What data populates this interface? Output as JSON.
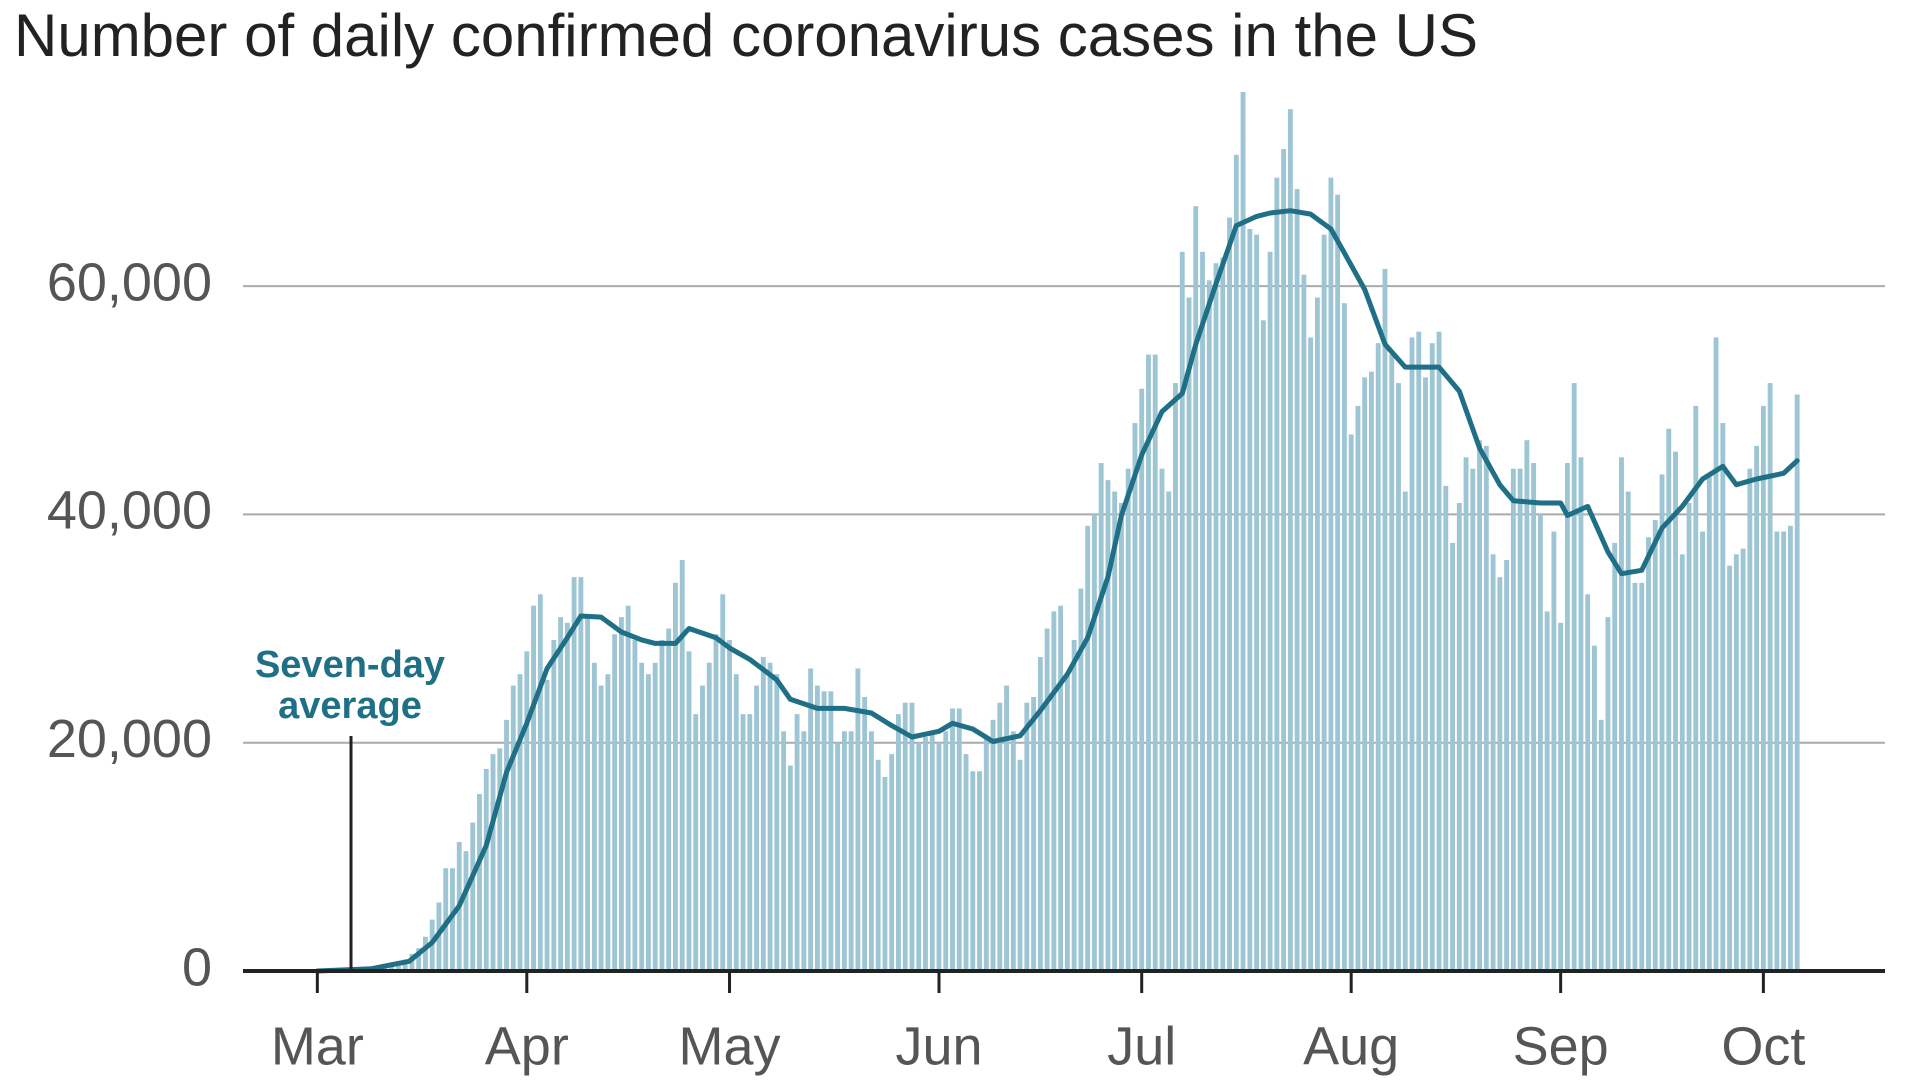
{
  "chart_data": {
    "type": "bar",
    "title": "Number of daily confirmed coronavirus cases in the US",
    "annotation_lines": [
      "Seven-day",
      "average"
    ],
    "x": [
      0,
      1,
      2,
      3,
      4,
      5,
      6,
      7,
      8,
      9,
      10,
      11,
      12,
      13,
      14,
      15,
      16,
      17,
      18,
      19,
      20,
      21,
      22,
      23,
      24,
      25,
      26,
      27,
      28,
      29,
      30,
      31,
      32,
      33,
      34,
      35,
      36,
      37,
      38,
      39,
      40,
      41,
      42,
      43,
      44,
      45,
      46,
      47,
      48,
      49,
      50,
      51,
      52,
      53,
      54,
      55,
      56,
      57,
      58,
      59,
      60,
      61,
      62,
      63,
      64,
      65,
      66,
      67,
      68,
      69,
      70,
      71,
      72,
      73,
      74,
      75,
      76,
      77,
      78,
      79,
      80,
      81,
      82,
      83,
      84,
      85,
      86,
      87,
      88,
      89,
      90,
      91,
      92,
      93,
      94,
      95,
      96,
      97,
      98,
      99,
      100,
      101,
      102,
      103,
      104,
      105,
      106,
      107,
      108,
      109,
      110,
      111,
      112,
      113,
      114,
      115,
      116,
      117,
      118,
      119,
      120,
      121,
      122,
      123,
      124,
      125,
      126,
      127,
      128,
      129,
      130,
      131,
      132,
      133,
      134,
      135,
      136,
      137,
      138,
      139,
      140,
      141,
      142,
      143,
      144,
      145,
      146,
      147,
      148,
      149,
      150,
      151,
      152,
      153,
      154,
      155,
      156,
      157,
      158,
      159,
      160,
      161,
      162,
      163,
      164,
      165,
      166,
      167,
      168,
      169,
      170,
      171,
      172,
      173,
      174,
      175,
      176,
      177,
      178,
      179,
      180,
      181,
      182,
      183,
      184,
      185,
      186,
      187,
      188,
      189,
      190,
      191,
      192,
      193,
      194,
      195,
      196,
      197,
      198,
      199,
      200,
      201,
      202,
      203,
      204,
      205,
      206,
      207,
      208,
      209,
      210,
      211,
      212,
      213,
      214,
      215,
      216,
      217,
      218,
      219
    ],
    "values": [
      0,
      0,
      0,
      0,
      0,
      0,
      0,
      100,
      200,
      300,
      400,
      500,
      700,
      1000,
      1500,
      2000,
      3000,
      4500,
      6000,
      9000,
      9000,
      11300,
      10500,
      13000,
      15500,
      17700,
      19000,
      19500,
      22000,
      25000,
      26000,
      28000,
      32000,
      33000,
      25500,
      29000,
      31000,
      30500,
      34500,
      34500,
      31000,
      27000,
      25000,
      26000,
      29500,
      31000,
      32000,
      29000,
      27000,
      26000,
      27000,
      29000,
      30000,
      34000,
      36000,
      28000,
      22500,
      25000,
      27000,
      29500,
      33000,
      29000,
      26000,
      22500,
      22500,
      25000,
      27500,
      27000,
      26000,
      21000,
      18000,
      22500,
      21000,
      26500,
      25000,
      24500,
      24500,
      20000,
      21000,
      21000,
      26500,
      24000,
      21000,
      18500,
      17000,
      19000,
      22500,
      23500,
      23500,
      20000,
      20500,
      21000,
      20000,
      21000,
      23000,
      23000,
      19000,
      17500,
      17500,
      20500,
      22000,
      23500,
      25000,
      21000,
      18500,
      23500,
      24000,
      27500,
      30000,
      31500,
      32000,
      26000,
      29000,
      33500,
      39000,
      40000,
      44500,
      43000,
      42000,
      41000,
      44000,
      48000,
      51000,
      54000,
      54000,
      44000,
      42000,
      51500,
      63000,
      59000,
      67000,
      63000,
      60500,
      62000,
      62500,
      66000,
      71500,
      77000,
      65000,
      64500,
      57000,
      63000,
      69500,
      72000,
      75500,
      68500,
      61000,
      55500,
      59000,
      64500,
      69500,
      68000,
      58500,
      47000,
      49500,
      52000,
      52500,
      55000,
      61500,
      54000,
      51500,
      42000,
      55500,
      56000,
      52000,
      55000,
      56000,
      42500,
      37500,
      41000,
      45000,
      44000,
      46500,
      46000,
      36500,
      34500,
      36000,
      44000,
      44000,
      46500,
      44500,
      40000,
      31500,
      38500,
      30500,
      44500,
      51500,
      45000,
      33000,
      28500,
      22000,
      31000,
      37500,
      45000,
      42000,
      34000,
      34000,
      38000,
      39500,
      43500,
      47500,
      45500,
      36500,
      41000,
      49500,
      38500,
      43500,
      55500,
      48000,
      35500,
      36500,
      37000,
      44000,
      46000,
      49500,
      51500,
      38500,
      38500,
      39000,
      50500
    ],
    "color": "#9ec5d3",
    "line": {
      "color": "#1f6f87",
      "x": [
        0,
        8,
        13.6,
        17,
        21,
        25,
        28,
        31,
        34,
        37,
        39,
        42,
        45,
        48,
        50,
        53,
        55,
        59,
        61,
        64,
        68,
        70,
        74,
        78,
        82,
        85,
        88,
        92,
        94,
        97,
        100,
        104,
        107,
        111,
        114,
        117,
        119,
        122,
        125,
        128,
        130,
        133,
        136,
        139,
        141,
        144,
        147,
        150,
        152,
        155,
        158,
        161,
        163,
        166,
        169,
        172,
        175,
        177,
        181,
        184,
        185,
        188,
        191,
        193,
        196,
        199,
        202,
        205,
        208,
        210,
        213,
        217,
        219
      ],
      "values": [
        0,
        200,
        850,
        2500,
        5700,
        11000,
        17400,
        21700,
        26500,
        29200,
        31100,
        31000,
        29700,
        29000,
        28700,
        28700,
        30000,
        29200,
        28300,
        27300,
        25500,
        23800,
        23000,
        23000,
        22600,
        21500,
        20500,
        21000,
        21700,
        21200,
        20100,
        20600,
        22800,
        26000,
        29200,
        34500,
        39900,
        45200,
        49000,
        50600,
        54900,
        60200,
        65300,
        66100,
        66400,
        66600,
        66300,
        65000,
        62900,
        59700,
        54900,
        52900,
        52900,
        52900,
        50800,
        45800,
        42600,
        41200,
        41000,
        41000,
        39900,
        40700,
        36700,
        34800,
        35100,
        38800,
        40700,
        43100,
        44200,
        42600,
        43100,
        43600,
        44700
      ]
    },
    "xlim": [
      -11,
      232
    ],
    "xticks": [
      {
        "value": 0,
        "label": "Mar"
      },
      {
        "value": 31,
        "label": "Apr"
      },
      {
        "value": 61,
        "label": "May"
      },
      {
        "value": 92,
        "label": "Jun"
      },
      {
        "value": 122,
        "label": "Jul"
      },
      {
        "value": 153,
        "label": "Aug"
      },
      {
        "value": 184,
        "label": "Sep"
      },
      {
        "value": 214,
        "label": "Oct"
      }
    ],
    "ylim": [
      0,
      77000
    ],
    "yticks": [
      0,
      {
        "value": 20000,
        "label": "20,000"
      },
      {
        "value": 40000,
        "label": "40,000"
      },
      {
        "value": 60000,
        "label": "60,000"
      }
    ],
    "grid": true
  }
}
